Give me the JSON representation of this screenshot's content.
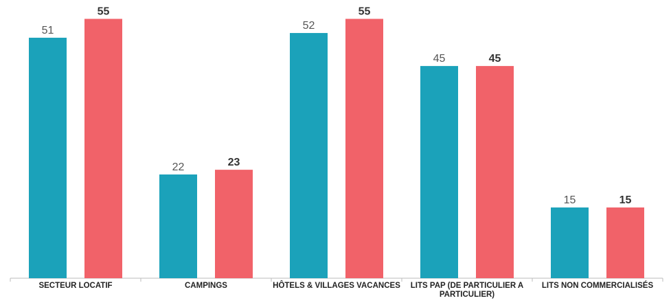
{
  "chart_data": {
    "type": "bar",
    "categories": [
      "SECTEUR LOCATIF",
      "CAMPINGS",
      "HÔTELS & VILLAGES VACANCES",
      "LITS PAP (DE PARTICULIER A PARTICULIER)",
      "LITS NON COMMERCIALISÉS"
    ],
    "series": [
      {
        "color": "#1ba2ba",
        "values": [
          51,
          22,
          52,
          45,
          15
        ]
      },
      {
        "color": "#f16269",
        "values": [
          55,
          23,
          55,
          45,
          15
        ]
      }
    ],
    "ylim": [
      0,
      59
    ]
  }
}
